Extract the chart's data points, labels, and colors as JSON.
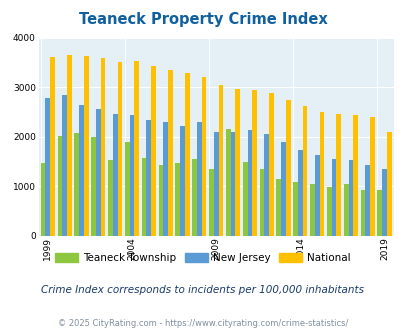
{
  "title": "Teaneck Property Crime Index",
  "subtitle": "Crime Index corresponds to incidents per 100,000 inhabitants",
  "footer": "© 2025 CityRating.com - https://www.cityrating.com/crime-statistics/",
  "years": [
    1999,
    2000,
    2001,
    2002,
    2003,
    2004,
    2005,
    2006,
    2007,
    2008,
    2009,
    2010,
    2011,
    2012,
    2013,
    2014,
    2015,
    2016,
    2017,
    2018,
    2019
  ],
  "teaneck": [
    1480,
    2020,
    2080,
    2000,
    1540,
    1900,
    1570,
    1430,
    1480,
    1560,
    1350,
    2160,
    1490,
    1350,
    1160,
    1080,
    1050,
    980,
    1050,
    930,
    920
  ],
  "nj": [
    2780,
    2840,
    2650,
    2560,
    2470,
    2450,
    2350,
    2300,
    2220,
    2310,
    2100,
    2090,
    2150,
    2060,
    1900,
    1730,
    1640,
    1560,
    1540,
    1430,
    1350
  ],
  "national": [
    3620,
    3660,
    3640,
    3600,
    3510,
    3530,
    3430,
    3360,
    3290,
    3210,
    3050,
    2960,
    2950,
    2880,
    2740,
    2620,
    2510,
    2470,
    2450,
    2400,
    2100
  ],
  "teaneck_color": "#8dc63f",
  "nj_color": "#5b9bd5",
  "national_color": "#ffc000",
  "bg_color": "#e4f0f6",
  "title_color": "#1060a0",
  "subtitle_color": "#1a3a6a",
  "footer_color": "#8090a0",
  "ylim": [
    0,
    4000
  ],
  "yticks": [
    0,
    1000,
    2000,
    3000,
    4000
  ],
  "bar_width": 0.28,
  "legend_labels": [
    "Teaneck Township",
    "New Jersey",
    "National"
  ],
  "tick_years": [
    1999,
    2004,
    2009,
    2014,
    2019
  ]
}
